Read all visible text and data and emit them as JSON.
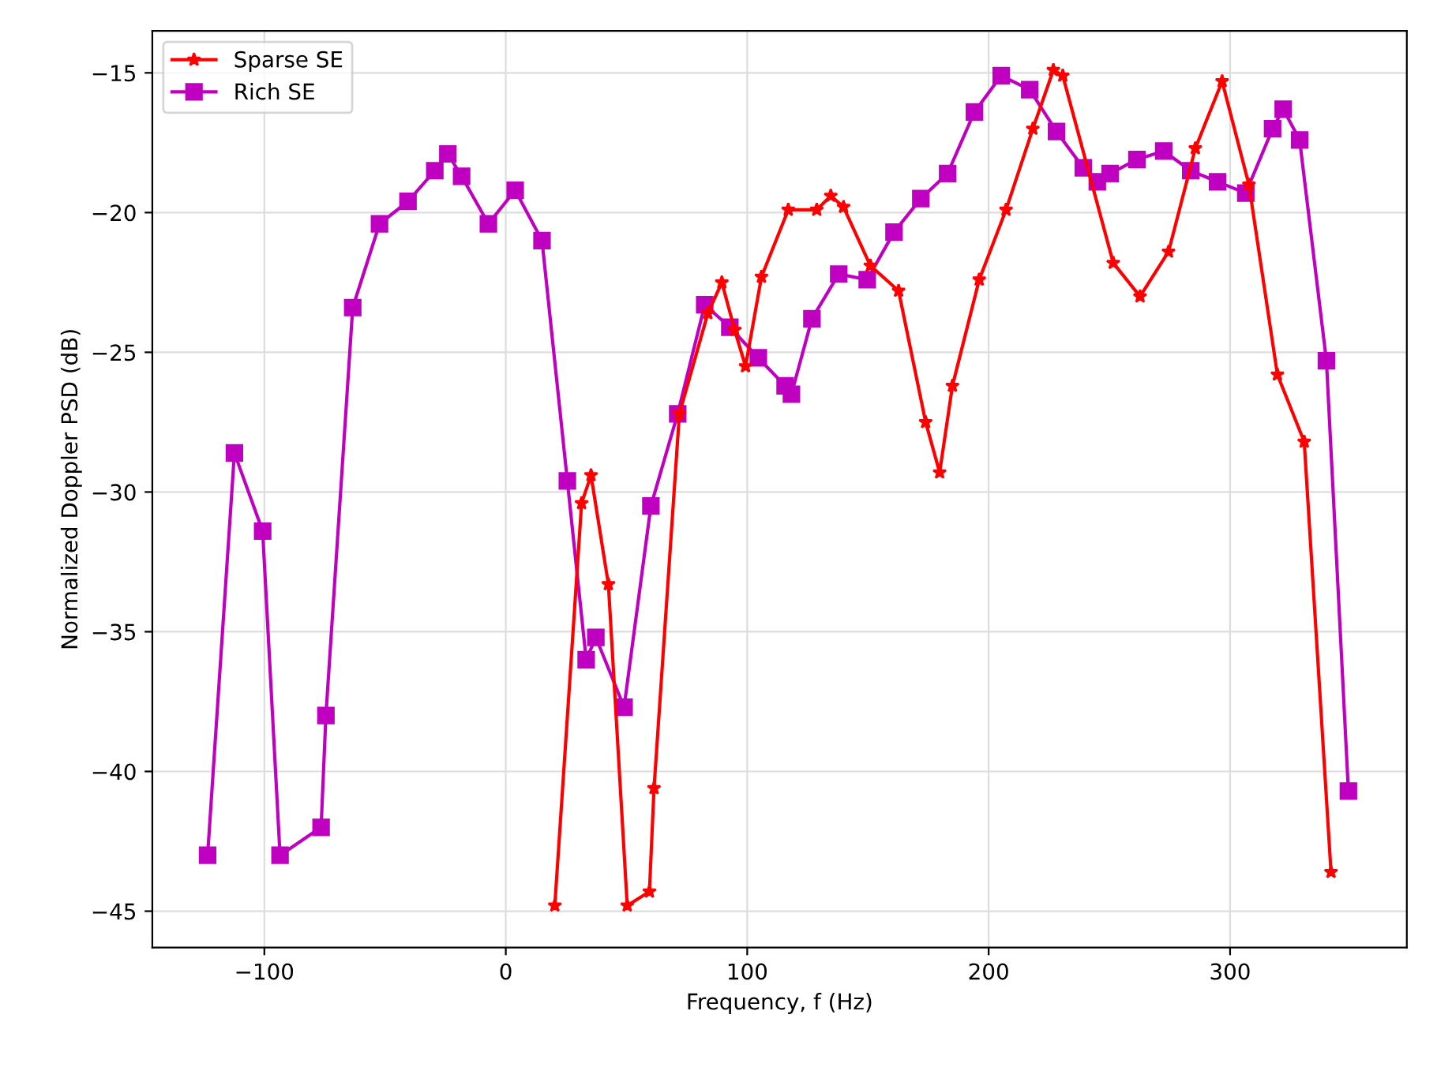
{
  "chart_data": {
    "type": "line",
    "xlabel": "Frequency, f (Hz)",
    "ylabel": "Normalized Doppler PSD (dB)",
    "xlim": [
      -146.4,
      373.2
    ],
    "ylim": [
      -46.3,
      -13.5
    ],
    "xticks": [
      -100,
      0,
      100,
      200,
      300
    ],
    "yticks": [
      -45,
      -40,
      -35,
      -30,
      -25,
      -20,
      -15
    ],
    "grid": true,
    "legend": "top left",
    "line_style": "solid",
    "series": [
      {
        "name": "Sparse SE",
        "color": "#ff0000",
        "marker": "star",
        "x": [
          20.3,
          31.4,
          35.3,
          42.5,
          50.3,
          59.5,
          61.4,
          71.9,
          83.7,
          89.5,
          94.8,
          99.3,
          105.9,
          117,
          128.8,
          134.6,
          139.9,
          151,
          162.7,
          173.9,
          179.7,
          185,
          196.1,
          207.2,
          218.3,
          226.8,
          230.7,
          251.6,
          262.7,
          274.5,
          285.6,
          296.7,
          307.8,
          319.6,
          330.7,
          341.8
        ],
        "values": [
          -44.8,
          -30.4,
          -29.4,
          -33.3,
          -44.8,
          -44.3,
          -40.6,
          -27.2,
          -23.6,
          -22.5,
          -24.2,
          -25.5,
          -22.3,
          -19.9,
          -19.9,
          -19.4,
          -19.8,
          -21.9,
          -22.8,
          -27.5,
          -29.3,
          -26.2,
          -22.4,
          -19.9,
          -17.0,
          -14.9,
          -15.1,
          -21.8,
          -23.0,
          -21.4,
          -17.7,
          -15.3,
          -19.0,
          -25.8,
          -28.2,
          -43.6
        ]
      },
      {
        "name": "Rich SE",
        "color": "#c000c0",
        "marker": "square",
        "x": [
          -123.5,
          -112.4,
          -100.7,
          -93.5,
          -76.5,
          -74.5,
          -63.4,
          -52.3,
          -40.5,
          -29.4,
          -24,
          -18.3,
          -7.2,
          3.9,
          15,
          25.5,
          33.3,
          37.3,
          49,
          60.1,
          71.2,
          82.4,
          92.8,
          104.6,
          115.7,
          118.3,
          126.8,
          137.9,
          149.7,
          160.8,
          171.9,
          183,
          194.1,
          205.2,
          217,
          228.1,
          239.2,
          245,
          250.3,
          261.4,
          272.5,
          283.7,
          294.8,
          306.5,
          317.6,
          322,
          328.8,
          339.9,
          349
        ],
        "values": [
          -43.0,
          -28.6,
          -31.4,
          -43.0,
          -42.0,
          -38.0,
          -23.4,
          -20.4,
          -19.6,
          -18.5,
          -17.9,
          -18.7,
          -20.4,
          -19.2,
          -21.0,
          -29.6,
          -36.0,
          -35.2,
          -37.7,
          -30.5,
          -27.2,
          -23.3,
          -24.1,
          -25.2,
          -26.2,
          -26.5,
          -23.8,
          -22.2,
          -22.4,
          -20.7,
          -19.5,
          -18.6,
          -16.4,
          -15.1,
          -15.6,
          -17.1,
          -18.4,
          -18.9,
          -18.6,
          -18.1,
          -17.8,
          -18.5,
          -18.9,
          -19.3,
          -17.0,
          -16.3,
          -17.4,
          -25.3,
          -40.7
        ]
      }
    ]
  }
}
